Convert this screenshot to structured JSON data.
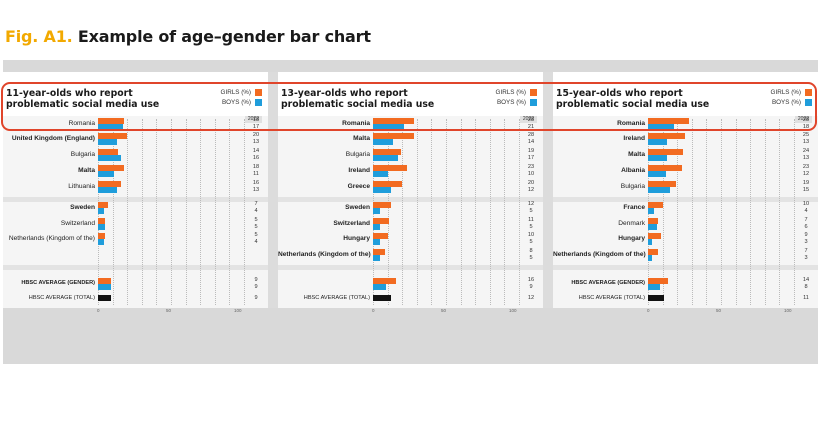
{
  "figure": {
    "label": "Fig. A1.",
    "title": "Example of age–gender bar chart"
  },
  "colors": {
    "girls": "#f26b21",
    "boys": "#1f9ddb",
    "total": "#111111",
    "highlight": "#e0452b",
    "title_label": "#f2a900"
  },
  "legend": {
    "girls": "GIRLS (%)",
    "boys": "BOYS (%)"
  },
  "year_label": "2022",
  "chart_data": [
    {
      "type": "bar",
      "orientation": "horizontal",
      "title": "11-year-olds who report problematic social media use",
      "xlim": [
        0,
        100
      ],
      "xticks": [
        "0",
        "50",
        "100"
      ],
      "groups": [
        {
          "rows": [
            {
              "country": "Romania",
              "bold": false,
              "girls": 18,
              "boys": 17
            },
            {
              "country": "United Kingdom (England)",
              "bold": true,
              "girls": 20,
              "boys": 13
            },
            {
              "country": "Bulgaria",
              "bold": false,
              "girls": 14,
              "boys": 16
            },
            {
              "country": "Malta",
              "bold": true,
              "girls": 18,
              "boys": 11
            },
            {
              "country": "Lithuania",
              "bold": false,
              "girls": 16,
              "boys": 13
            }
          ]
        },
        {
          "rows": [
            {
              "country": "Sweden",
              "bold": true,
              "girls": 7,
              "boys": 4
            },
            {
              "country": "Switzerland",
              "bold": false,
              "girls": 5,
              "boys": 5
            },
            {
              "country": "Netherlands (Kingdom of the)",
              "bold": false,
              "girls": 5,
              "boys": 4
            }
          ]
        }
      ],
      "average_gender": {
        "label": "HBSC AVERAGE (GENDER)",
        "girls": 9,
        "boys": 9
      },
      "average_total": {
        "label": "HBSC AVERAGE (TOTAL)",
        "total": 9
      }
    },
    {
      "type": "bar",
      "orientation": "horizontal",
      "title": "13-year-olds who report problematic social media use",
      "xlim": [
        0,
        100
      ],
      "xticks": [
        "0",
        "50",
        "100"
      ],
      "groups": [
        {
          "rows": [
            {
              "country": "Romania",
              "bold": true,
              "girls": 28,
              "boys": 21
            },
            {
              "country": "Malta",
              "bold": true,
              "girls": 28,
              "boys": 14
            },
            {
              "country": "Bulgaria",
              "bold": false,
              "girls": 19,
              "boys": 17
            },
            {
              "country": "Ireland",
              "bold": true,
              "girls": 23,
              "boys": 10
            },
            {
              "country": "Greece",
              "bold": true,
              "girls": 20,
              "boys": 12
            }
          ]
        },
        {
          "rows": [
            {
              "country": "Sweden",
              "bold": true,
              "girls": 12,
              "boys": 5
            },
            {
              "country": "Switzerland",
              "bold": true,
              "girls": 11,
              "boys": 5
            },
            {
              "country": "Hungary",
              "bold": true,
              "girls": 10,
              "boys": 5
            },
            {
              "country": "Netherlands (Kingdom of the)",
              "bold": true,
              "girls": 8,
              "boys": 5
            }
          ]
        }
      ],
      "average_gender": {
        "label": "",
        "girls": 16,
        "boys": 9
      },
      "average_total": {
        "label": "HBSC AVERAGE (TOTAL)",
        "total": 12
      }
    },
    {
      "type": "bar",
      "orientation": "horizontal",
      "title": "15-year-olds who report problematic social media use",
      "xlim": [
        0,
        100
      ],
      "xticks": [
        "0",
        "50",
        "100"
      ],
      "groups": [
        {
          "rows": [
            {
              "country": "Romania",
              "bold": true,
              "girls": 28,
              "boys": 18
            },
            {
              "country": "Ireland",
              "bold": true,
              "girls": 25,
              "boys": 13
            },
            {
              "country": "Malta",
              "bold": true,
              "girls": 24,
              "boys": 13
            },
            {
              "country": "Albania",
              "bold": true,
              "girls": 23,
              "boys": 12
            },
            {
              "country": "Bulgaria",
              "bold": false,
              "girls": 19,
              "boys": 15
            }
          ]
        },
        {
          "rows": [
            {
              "country": "France",
              "bold": true,
              "girls": 10,
              "boys": 4
            },
            {
              "country": "Denmark",
              "bold": false,
              "girls": 7,
              "boys": 6
            },
            {
              "country": "Hungary",
              "bold": true,
              "girls": 9,
              "boys": 3
            },
            {
              "country": "Netherlands (Kingdom of the)",
              "bold": true,
              "girls": 7,
              "boys": 3
            }
          ]
        }
      ],
      "average_gender": {
        "label": "HBSC AVERAGE (GENDER)",
        "girls": 14,
        "boys": 8
      },
      "average_total": {
        "label": "HBSC AVERAGE (TOTAL)",
        "total": 11
      }
    }
  ]
}
